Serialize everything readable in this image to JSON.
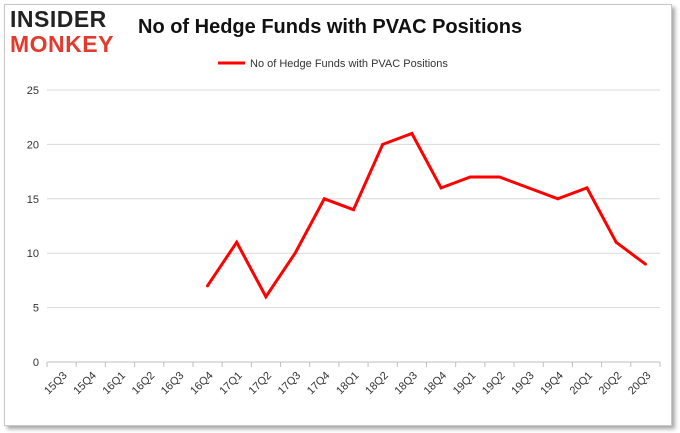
{
  "logo": {
    "line1": "INSIDER",
    "line2": "MONKEY",
    "accent": "#e23b2e"
  },
  "chart_data": {
    "type": "line",
    "title": "No of Hedge Funds with PVAC Positions",
    "xlabel": "",
    "ylabel": "",
    "categories": [
      "15Q3",
      "15Q4",
      "16Q1",
      "16Q2",
      "16Q3",
      "16Q4",
      "17Q1",
      "17Q2",
      "17Q3",
      "17Q4",
      "18Q1",
      "18Q2",
      "18Q3",
      "18Q4",
      "19Q1",
      "19Q2",
      "19Q3",
      "19Q4",
      "20Q1",
      "20Q2",
      "20Q3"
    ],
    "series": [
      {
        "name": "No of Hedge Funds with PVAC Positions",
        "color": "#ff0000",
        "values": [
          null,
          null,
          null,
          null,
          null,
          7,
          11,
          6,
          10,
          15,
          14,
          20,
          21,
          16,
          17,
          17,
          16,
          15,
          16,
          11,
          9
        ]
      }
    ],
    "ylim": [
      0,
      25
    ],
    "yticks": [
      0,
      5,
      10,
      15,
      20,
      25
    ],
    "grid": true,
    "legend": "top-center"
  }
}
